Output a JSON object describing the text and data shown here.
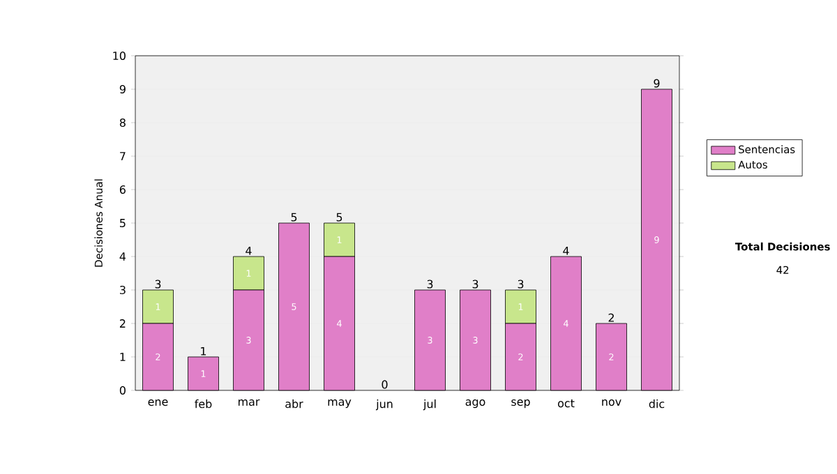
{
  "chart_data": {
    "type": "bar",
    "stacked": true,
    "ylabel": "Decisiones Anual",
    "categories": [
      "ene",
      "feb",
      "mar",
      "abr",
      "may",
      "jun",
      "jul",
      "ago",
      "sep",
      "oct",
      "nov",
      "dic"
    ],
    "series": [
      {
        "name": "Sentencias",
        "color": "#e07fc8",
        "values": [
          2,
          1,
          3,
          5,
          4,
          0,
          3,
          3,
          2,
          4,
          2,
          9
        ],
        "value_labels": [
          "2",
          "1",
          "3",
          "5",
          "4",
          null,
          "3",
          "3",
          "2",
          "4",
          "2",
          "9"
        ]
      },
      {
        "name": "Autos",
        "color": "#c8e68c",
        "values": [
          1,
          0,
          1,
          0,
          1,
          0,
          0,
          0,
          1,
          0,
          0,
          0
        ],
        "value_labels": [
          "1",
          null,
          "1",
          null,
          "1",
          null,
          null,
          null,
          "1",
          null,
          null,
          null
        ]
      }
    ],
    "totals": [
      "3",
      "1",
      "4",
      "5",
      "5",
      "0",
      "3",
      "3",
      "3",
      "4",
      "2",
      "9"
    ],
    "ylim": [
      0,
      10
    ],
    "yticks": [
      0,
      1,
      2,
      3,
      4,
      5,
      6,
      7,
      8,
      9,
      10
    ],
    "grid": "y",
    "legend": "right",
    "annotations": [
      "**Total Decisiones**",
      "42"
    ]
  }
}
